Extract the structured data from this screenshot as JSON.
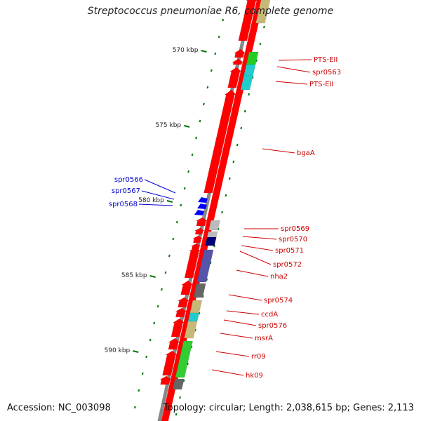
{
  "title": "Streptococcus pneumoniae R6, complete genome",
  "accession": "Accession: NC_003098",
  "summary": "Topology: circular; Length: 2,038,615 bp; Genes: 2,113",
  "colors": {
    "backbone": "#888888",
    "forward_gene": "#ff0000",
    "label_forward": "#cc0000",
    "label_reverse": "#0000cc",
    "reverse_gene": "#0000ff",
    "tick": "#007700"
  },
  "scale": [
    "570 kbp",
    "575 kbp",
    "580 kbp",
    "585 kbp",
    "590 kbp"
  ],
  "gene_labels_right": [
    "PTS-EII",
    "spr0563",
    "PTS-EII",
    "bgaA",
    "spr0569",
    "spr0570",
    "spr0571",
    "spr0572",
    "nha2",
    "spr0574",
    "ccdA",
    "spr0576",
    "msrA",
    "rr09",
    "hk09"
  ],
  "gene_labels_left": [
    "spr0566",
    "spr0567",
    "spr0568"
  ]
}
